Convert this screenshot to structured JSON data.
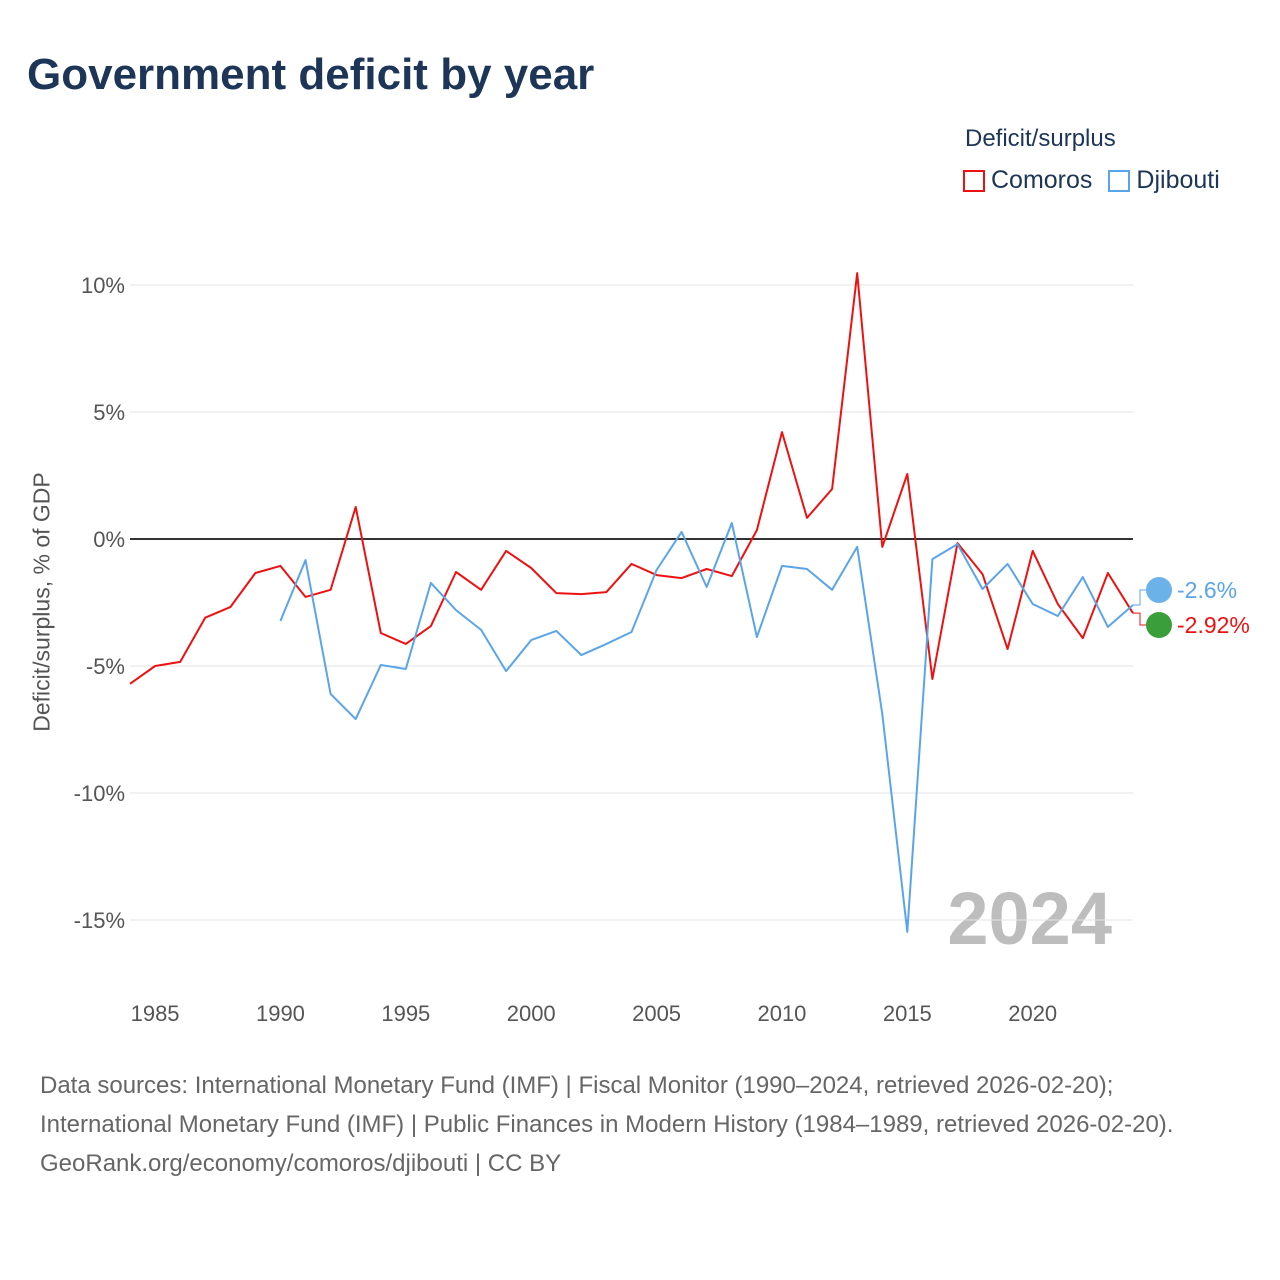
{
  "title": "Government deficit by year",
  "legend": {
    "title": "Deficit/surplus",
    "items": [
      {
        "name": "Comoros",
        "color": "#ee1111"
      },
      {
        "name": "Djibouti",
        "color": "#5aa5ea"
      }
    ]
  },
  "footer": {
    "sources": "Data sources: International Monetary Fund (IMF) | Fiscal Monitor (1990–2024, retrieved 2026-02-20); International Monetary Fund (IMF) | Public Finances in Modern History (1984–1989, retrieved 2026-02-20).",
    "credit": "GeoRank.org/economy/comoros/djibouti | CC BY"
  },
  "chart_data": {
    "type": "line",
    "title": "Government deficit by year",
    "xlabel": "",
    "ylabel": "Deficit/surplus, % of GDP",
    "xlim": [
      1984,
      2024
    ],
    "ylim": [
      -17,
      12
    ],
    "xticks": [
      1985,
      1990,
      1995,
      2000,
      2005,
      2010,
      2015,
      2020
    ],
    "yticks": [
      {
        "v": 10,
        "label": "10%"
      },
      {
        "v": 5,
        "label": "5%"
      },
      {
        "v": 0,
        "label": "0%"
      },
      {
        "v": -5,
        "label": "-5%"
      },
      {
        "v": -10,
        "label": "-10%"
      },
      {
        "v": -15,
        "label": "-15%"
      }
    ],
    "year_watermark": "2024",
    "series": [
      {
        "name": "Comoros",
        "color": "#ee1111",
        "end_label": "-2.92%",
        "start": 1984,
        "values": [
          -5.7,
          -5.0,
          -4.84,
          -3.1,
          -2.68,
          -1.34,
          -1.06,
          -2.28,
          -2.0,
          1.26,
          -3.7,
          -4.13,
          -3.43,
          -1.3,
          -2.0,
          -0.47,
          -1.14,
          -2.13,
          -2.17,
          -2.09,
          -0.98,
          -1.42,
          -1.54,
          -1.18,
          -1.46,
          0.35,
          4.21,
          0.83,
          1.97,
          10.47,
          -0.31,
          2.56,
          -5.51,
          -0.16,
          -1.38,
          -4.33,
          -0.47,
          -2.56,
          -3.9,
          -1.34,
          -2.92
        ]
      },
      {
        "name": "Djibouti",
        "color": "#5aa5ea",
        "end_label": "-2.6%",
        "start": 1990,
        "values": [
          -3.23,
          -0.83,
          -6.1,
          -7.09,
          -4.96,
          -5.12,
          -1.73,
          -2.8,
          -3.58,
          -5.2,
          -3.98,
          -3.62,
          -4.57,
          -4.13,
          -3.66,
          -1.22,
          0.28,
          -1.89,
          0.63,
          -3.86,
          -1.06,
          -1.18,
          -2.0,
          -0.31,
          -6.89,
          -15.47,
          -0.79,
          -0.2,
          -1.97,
          -0.98,
          -2.56,
          -3.03,
          -1.5,
          -3.46,
          -2.6
        ]
      }
    ]
  }
}
